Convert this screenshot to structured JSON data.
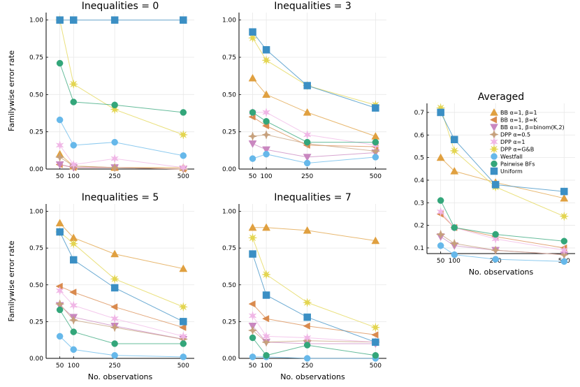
{
  "colors": {
    "bb_beta1": "#E0A040",
    "bb_betaK": "#D98A4E",
    "bb_binom": "#C987C0",
    "dpp_05": "#C6A07C",
    "dpp_1": "#F0B6E6",
    "dpp_gb": "#E3D550",
    "westfall": "#66B8EA",
    "pairwise": "#33A67A",
    "uniform": "#3B8FC4",
    "grid": "#E8E8E8",
    "axis": "#000000"
  },
  "chart_data": [
    {
      "type": "scatter",
      "title": "Inequalities = 0",
      "xlabel": "",
      "ylabel": "Familywise error rate",
      "x": [
        50,
        100,
        250,
        500
      ],
      "xlim": [
        0,
        540
      ],
      "ylim": [
        0,
        1.05
      ],
      "xticks": [
        "50",
        "100",
        "250",
        "500"
      ],
      "yticks": [
        "0.00",
        "0.25",
        "0.50",
        "0.75",
        "1.00"
      ],
      "series": [
        {
          "name": "BB α=1, β=1",
          "values": [
            0.1,
            0.02,
            0.01,
            0.01
          ]
        },
        {
          "name": "BB α=1, β=K",
          "values": [
            0.03,
            0.01,
            0.01,
            0.0
          ]
        },
        {
          "name": "BB α=1, β=binom(K,2)",
          "values": [
            0.03,
            0.01,
            0.01,
            0.0
          ]
        },
        {
          "name": "DPP α=0.5",
          "values": [
            0.08,
            0.02,
            0.01,
            0.0
          ]
        },
        {
          "name": "DPP α=1",
          "values": [
            0.16,
            0.03,
            0.07,
            0.01
          ]
        },
        {
          "name": "DPP α=G&B",
          "values": [
            1.0,
            0.57,
            0.4,
            0.23
          ]
        },
        {
          "name": "Westfall",
          "values": [
            0.33,
            0.16,
            0.18,
            0.09
          ]
        },
        {
          "name": "Pairwise BFs",
          "values": [
            0.71,
            0.45,
            0.43,
            0.38
          ]
        },
        {
          "name": "Uniform",
          "values": [
            1.0,
            1.0,
            1.0,
            1.0
          ]
        }
      ]
    },
    {
      "type": "scatter",
      "title": "Inequalities = 3",
      "xlabel": "",
      "ylabel": "",
      "x": [
        50,
        100,
        250,
        500
      ],
      "xlim": [
        0,
        540
      ],
      "ylim": [
        0,
        1.05
      ],
      "xticks": [
        "50",
        "100",
        "250",
        "500"
      ],
      "yticks": [
        "0.00",
        "0.25",
        "0.50",
        "0.75",
        "1.00"
      ],
      "series": [
        {
          "name": "BB α=1, β=1",
          "values": [
            0.61,
            0.5,
            0.38,
            0.22
          ]
        },
        {
          "name": "BB α=1, β=K",
          "values": [
            0.35,
            0.29,
            0.16,
            0.15
          ]
        },
        {
          "name": "BB α=1, β=binom(K,2)",
          "values": [
            0.17,
            0.13,
            0.08,
            0.11
          ]
        },
        {
          "name": "DPP α=0.5",
          "values": [
            0.22,
            0.23,
            0.17,
            0.12
          ]
        },
        {
          "name": "DPP α=1",
          "values": [
            0.38,
            0.38,
            0.23,
            0.16
          ]
        },
        {
          "name": "DPP α=G&B",
          "values": [
            0.88,
            0.73,
            0.56,
            0.43
          ]
        },
        {
          "name": "Westfall",
          "values": [
            0.07,
            0.1,
            0.04,
            0.08
          ]
        },
        {
          "name": "Pairwise BFs",
          "values": [
            0.38,
            0.32,
            0.18,
            0.18
          ]
        },
        {
          "name": "Uniform",
          "values": [
            0.92,
            0.8,
            0.56,
            0.41
          ]
        }
      ]
    },
    {
      "type": "scatter",
      "title": "Inequalities = 5",
      "xlabel": "No. observations",
      "ylabel": "Familywise error rate",
      "x": [
        50,
        100,
        250,
        500
      ],
      "xlim": [
        0,
        540
      ],
      "ylim": [
        0,
        1.05
      ],
      "xticks": [
        "50",
        "100",
        "250",
        "500"
      ],
      "yticks": [
        "0.00",
        "0.25",
        "0.50",
        "0.75",
        "1.00"
      ],
      "series": [
        {
          "name": "BB α=1, β=1",
          "values": [
            0.92,
            0.82,
            0.71,
            0.61
          ]
        },
        {
          "name": "BB α=1, β=K",
          "values": [
            0.49,
            0.45,
            0.35,
            0.21
          ]
        },
        {
          "name": "BB α=1, β=binom(K,2)",
          "values": [
            0.36,
            0.28,
            0.22,
            0.13
          ]
        },
        {
          "name": "DPP α=0.5",
          "values": [
            0.37,
            0.26,
            0.21,
            0.13
          ]
        },
        {
          "name": "DPP α=1",
          "values": [
            0.46,
            0.36,
            0.27,
            0.15
          ]
        },
        {
          "name": "DPP α=G&B",
          "values": [
            0.86,
            0.78,
            0.54,
            0.35
          ]
        },
        {
          "name": "Westfall",
          "values": [
            0.15,
            0.06,
            0.02,
            0.01
          ]
        },
        {
          "name": "Pairwise BFs",
          "values": [
            0.33,
            0.18,
            0.1,
            0.1
          ]
        },
        {
          "name": "Uniform",
          "values": [
            0.86,
            0.67,
            0.48,
            0.25
          ]
        }
      ]
    },
    {
      "type": "scatter",
      "title": "Inequalities = 7",
      "xlabel": "No. observations",
      "ylabel": "",
      "x": [
        50,
        100,
        250,
        500
      ],
      "xlim": [
        0,
        540
      ],
      "ylim": [
        0,
        1.05
      ],
      "xticks": [
        "50",
        "100",
        "250",
        "500"
      ],
      "yticks": [
        "0.00",
        "0.25",
        "0.50",
        "0.75",
        "1.00"
      ],
      "series": [
        {
          "name": "BB α=1, β=1",
          "values": [
            0.89,
            0.89,
            0.87,
            0.8
          ]
        },
        {
          "name": "BB α=1, β=K",
          "values": [
            0.37,
            0.27,
            0.22,
            0.16
          ]
        },
        {
          "name": "BB α=1, β=binom(K,2)",
          "values": [
            0.22,
            0.11,
            0.1,
            0.1
          ]
        },
        {
          "name": "DPP α=0.5",
          "values": [
            0.19,
            0.11,
            0.12,
            0.11
          ]
        },
        {
          "name": "DPP α=1",
          "values": [
            0.29,
            0.15,
            0.14,
            0.11
          ]
        },
        {
          "name": "DPP α=G&B",
          "values": [
            0.82,
            0.57,
            0.38,
            0.21
          ]
        },
        {
          "name": "Westfall",
          "values": [
            0.01,
            0.01,
            0.0,
            0.0
          ]
        },
        {
          "name": "Pairwise BFs",
          "values": [
            0.14,
            0.02,
            0.09,
            0.02
          ]
        },
        {
          "name": "Uniform",
          "values": [
            0.71,
            0.43,
            0.28,
            0.11
          ]
        }
      ]
    },
    {
      "type": "scatter",
      "title": "Averaged",
      "xlabel": "No. observations",
      "ylabel": "",
      "x": [
        50,
        100,
        250,
        500
      ],
      "xlim": [
        0,
        540
      ],
      "ylim": [
        0.075,
        0.74
      ],
      "xticks": [
        "50",
        "100",
        "250",
        "500"
      ],
      "yticks": [
        "0.1",
        "0.2",
        "0.3",
        "0.4",
        "0.5",
        "0.6",
        "0.7"
      ],
      "legend_position": "top-right",
      "series": [
        {
          "name": "BB α=1, β=1",
          "values": [
            0.5,
            0.44,
            0.39,
            0.32
          ]
        },
        {
          "name": "BB α=1, β=K",
          "values": [
            0.25,
            0.19,
            0.15,
            0.1
          ]
        },
        {
          "name": "BB α=1, β=binom(K,2)",
          "values": [
            0.15,
            0.11,
            0.09,
            0.07
          ]
        },
        {
          "name": "DPP α=0.5",
          "values": [
            0.16,
            0.12,
            0.09,
            0.07
          ]
        },
        {
          "name": "DPP α=1",
          "values": [
            0.26,
            0.19,
            0.14,
            0.09
          ]
        },
        {
          "name": "DPP α=G&B",
          "values": [
            0.72,
            0.53,
            0.37,
            0.24
          ]
        },
        {
          "name": "Westfall",
          "values": [
            0.11,
            0.07,
            0.05,
            0.04
          ]
        },
        {
          "name": "Pairwise BFs",
          "values": [
            0.31,
            0.19,
            0.16,
            0.13
          ]
        },
        {
          "name": "Uniform",
          "values": [
            0.7,
            0.58,
            0.38,
            0.35
          ]
        }
      ]
    }
  ]
}
